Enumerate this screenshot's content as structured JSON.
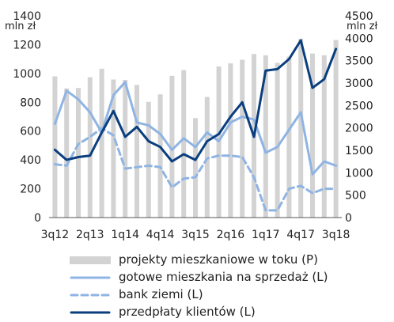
{
  "chart_data": {
    "type": "bar",
    "left_unit": "mln zł",
    "right_unit": "mln zł",
    "categories": [
      "3q12",
      "4q12",
      "1q13",
      "2q13",
      "3q13",
      "4q13",
      "1q14",
      "2q14",
      "3q14",
      "4q14",
      "1q15",
      "2q15",
      "3q15",
      "4q15",
      "1q16",
      "2q16",
      "3q16",
      "4q16",
      "1q17",
      "2q17",
      "3q17",
      "4q17",
      "1q18",
      "2q18",
      "3q18"
    ],
    "x_tick_labels": [
      "3q12",
      "2q13",
      "1q14",
      "4q14",
      "3q15",
      "2q16",
      "1q17",
      "4q17",
      "3q18"
    ],
    "left_axis": {
      "min": 0,
      "max": 1400,
      "ticks": [
        0,
        200,
        400,
        600,
        800,
        1000,
        1200,
        1400
      ]
    },
    "right_axis": {
      "min": 0,
      "max": 4500,
      "ticks": [
        0,
        500,
        1000,
        1500,
        2000,
        2500,
        3000,
        3500,
        4000,
        4500
      ]
    },
    "series": [
      {
        "name": "projekty mieszkaniowe w toku (P)",
        "kind": "bar",
        "axis": "right",
        "color": "#d3d3d3",
        "values": [
          3150,
          2880,
          2890,
          3130,
          3320,
          3080,
          3070,
          2960,
          2580,
          2750,
          3160,
          3290,
          2220,
          2690,
          3370,
          3440,
          3520,
          3650,
          3620,
          3450,
          3590,
          3990,
          3660,
          3620,
          3960
        ]
      },
      {
        "name": "gotowe mieszkania na sprzedaż (L)",
        "kind": "line",
        "axis": "left",
        "color": "#8fb4e3",
        "dash": false,
        "values": [
          650,
          880,
          820,
          730,
          590,
          850,
          940,
          660,
          640,
          580,
          470,
          550,
          490,
          590,
          530,
          660,
          700,
          680,
          450,
          490,
          610,
          730,
          300,
          390,
          360
        ]
      },
      {
        "name": "bank ziemi (L)",
        "kind": "line",
        "axis": "left",
        "color": "#8fb4e3",
        "dash": true,
        "values": [
          370,
          360,
          510,
          560,
          620,
          570,
          340,
          350,
          360,
          350,
          210,
          270,
          280,
          410,
          430,
          430,
          420,
          280,
          50,
          50,
          200,
          220,
          170,
          200,
          200
        ]
      },
      {
        "name": "przedpłaty klientów (L)",
        "kind": "line",
        "axis": "left",
        "color": "#0a3e7e",
        "dash": false,
        "values": [
          470,
          400,
          420,
          430,
          590,
          740,
          560,
          630,
          530,
          490,
          390,
          440,
          400,
          530,
          580,
          700,
          800,
          560,
          1020,
          1030,
          1100,
          1230,
          900,
          960,
          1170
        ]
      }
    ]
  }
}
